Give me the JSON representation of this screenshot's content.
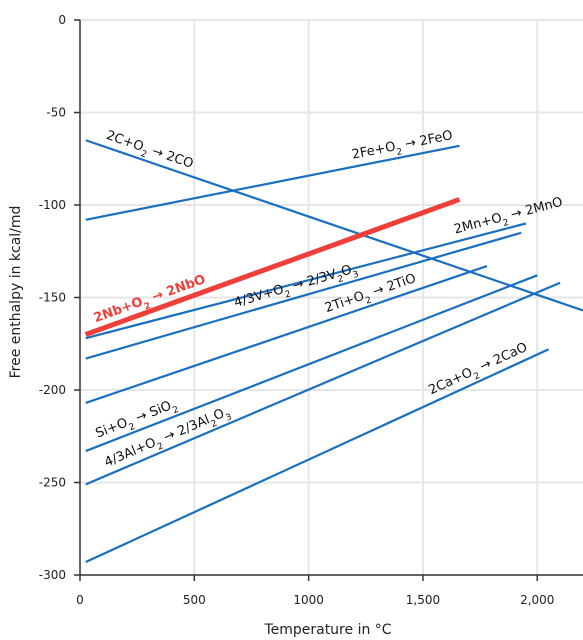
{
  "chart_data": {
    "type": "line",
    "xlabel": "Temperature in °C",
    "ylabel": "Free enthalpy in kcal/md",
    "xlim": [
      0,
      2200
    ],
    "ylim": [
      -300,
      0
    ],
    "x_ticks": [
      0,
      500,
      1000,
      1500,
      2000
    ],
    "x_tick_labels": [
      "0",
      "500",
      "1000",
      "1,500",
      "2,000"
    ],
    "y_ticks": [
      0,
      -50,
      -100,
      -150,
      -200,
      -250,
      -300
    ],
    "y_tick_labels": [
      "0",
      "-50",
      "-100",
      "-150",
      "-200",
      "-250",
      "-300"
    ],
    "grid": true,
    "colors": {
      "series": "#1a6fbf",
      "highlight": "#ef3f3a",
      "grid": "#e6e6e6",
      "axis": "#333333"
    },
    "series": [
      {
        "name": "2C+O2 → 2CO",
        "label": {
          "parts": [
            [
              "2C+O",
              ""
            ],
            [
              "2",
              "sub"
            ],
            [
              " → 2CO",
              ""
            ]
          ]
        },
        "x": [
          25,
          2200
        ],
        "y": [
          -65,
          -157
        ],
        "highlight": false,
        "label_at": [
          100,
          140
        ]
      },
      {
        "name": "2Fe+O2 → 2FeO",
        "label": {
          "parts": [
            [
              "2Fe+O",
              ""
            ],
            [
              "2",
              "sub"
            ],
            [
              " → 2FeO",
              ""
            ]
          ]
        },
        "x": [
          25,
          1660
        ],
        "y": [
          -108,
          -68
        ],
        "highlight": false,
        "label_at": [
          1200,
          1460
        ]
      },
      {
        "name": "2Mn+O2 → 2MnO",
        "label": {
          "parts": [
            [
              "2Mn+O",
              ""
            ],
            [
              "2",
              "sub"
            ],
            [
              " → 2MnO",
              ""
            ]
          ]
        },
        "x": [
          25,
          1950
        ],
        "y": [
          -172,
          -110
        ],
        "highlight": false,
        "label_at": [
          1650,
          1960
        ]
      },
      {
        "name": "2Nb+O2 → 2NbO",
        "label": {
          "parts": [
            [
              "2Nb+O",
              ""
            ],
            [
              "2",
              "sub"
            ],
            [
              " → 2NbO",
              ""
            ]
          ]
        },
        "x": [
          25,
          1660
        ],
        "y": [
          -170,
          -97
        ],
        "highlight": true,
        "label_at": [
          80,
          610
        ]
      },
      {
        "name": "4/3V+O2 → 2/3V2O3",
        "label": {
          "parts": [
            [
              "4/3V+O",
              ""
            ],
            [
              "2",
              "sub"
            ],
            [
              " → 2/3V",
              ""
            ],
            [
              "2",
              "sub"
            ],
            [
              "O",
              ""
            ],
            [
              "3",
              "sub"
            ]
          ]
        },
        "x": [
          25,
          1930
        ],
        "y": [
          -183,
          -115
        ],
        "highlight": false,
        "label_at": [
          690,
          1330
        ]
      },
      {
        "name": "2Ti+O2 → 2TiO",
        "label": {
          "parts": [
            [
              "2Ti+O",
              ""
            ],
            [
              "2",
              "sub"
            ],
            [
              " → 2TiO",
              ""
            ]
          ]
        },
        "x": [
          25,
          1780
        ],
        "y": [
          -207,
          -133
        ],
        "highlight": false,
        "label_at": [
          1090,
          1540
        ]
      },
      {
        "name": "Si+O2 → SiO2",
        "label": {
          "parts": [
            [
              "Si+O",
              ""
            ],
            [
              "2",
              "sub"
            ],
            [
              " → SiO",
              ""
            ],
            [
              "2",
              "sub"
            ]
          ]
        },
        "x": [
          25,
          2000
        ],
        "y": [
          -233,
          -138
        ],
        "highlight": false,
        "label_at": [
          90,
          480
        ]
      },
      {
        "name": "4/3Al+O2 → 2/3Al2O3",
        "label": {
          "parts": [
            [
              "4/3Al+O",
              ""
            ],
            [
              "2",
              "sub"
            ],
            [
              " → 2/3Al",
              ""
            ],
            [
              "2",
              "sub"
            ],
            [
              "O",
              ""
            ],
            [
              "3",
              "sub"
            ]
          ]
        },
        "x": [
          25,
          2100
        ],
        "y": [
          -251,
          -142
        ],
        "highlight": false,
        "label_at": [
          130,
          760
        ]
      },
      {
        "name": "2Ca+O2 → 2CaO",
        "label": {
          "parts": [
            [
              "2Ca+O",
              ""
            ],
            [
              "2",
              "sub"
            ],
            [
              " → 2CaO",
              ""
            ]
          ]
        },
        "x": [
          25,
          2050
        ],
        "y": [
          -293,
          -178
        ],
        "highlight": false,
        "label_at": [
          1550,
          2040
        ]
      }
    ]
  }
}
